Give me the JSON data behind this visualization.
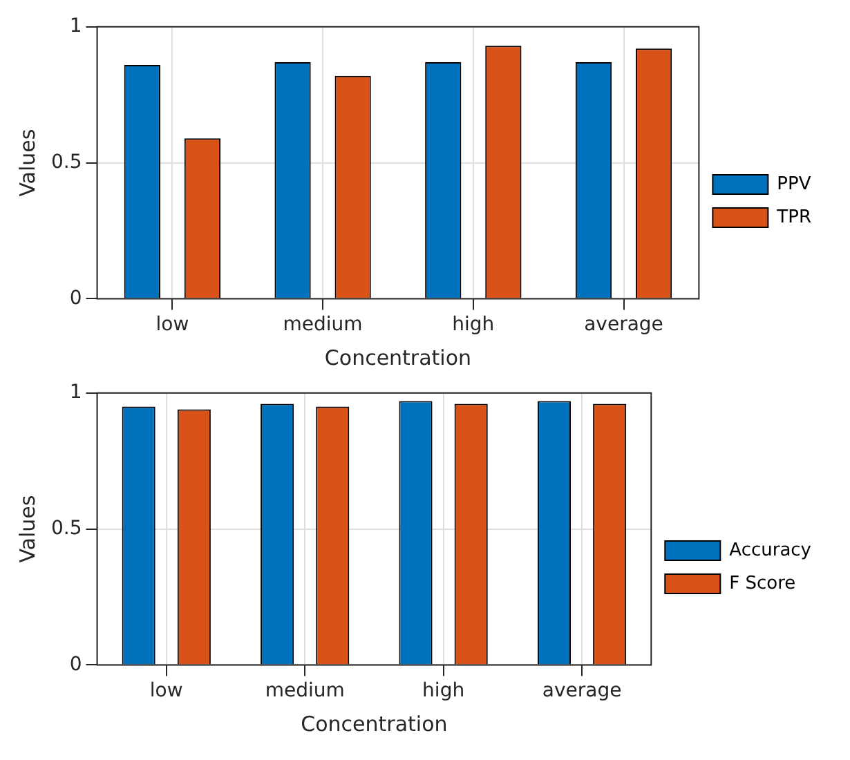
{
  "chart_data": [
    {
      "type": "bar",
      "categories": [
        "low",
        "medium",
        "high",
        "average"
      ],
      "xlabel": "Concentration",
      "ylabel": "Values",
      "ylim": [
        0,
        1
      ],
      "yticks": [
        0,
        0.5,
        1
      ],
      "grid": true,
      "legend": "right",
      "series": [
        {
          "name": "PPV",
          "color": "#0072bd",
          "values": [
            0.86,
            0.87,
            0.87,
            0.87
          ]
        },
        {
          "name": "TPR",
          "color": "#d95319",
          "values": [
            0.59,
            0.82,
            0.93,
            0.92
          ]
        }
      ]
    },
    {
      "type": "bar",
      "categories": [
        "low",
        "medium",
        "high",
        "average"
      ],
      "xlabel": "Concentration",
      "ylabel": "Values",
      "ylim": [
        0,
        1
      ],
      "yticks": [
        0,
        0.5,
        1
      ],
      "grid": true,
      "legend": "right",
      "series": [
        {
          "name": "Accuracy",
          "color": "#0072bd",
          "values": [
            0.95,
            0.96,
            0.97,
            0.97
          ]
        },
        {
          "name": "F Score",
          "color": "#d95319",
          "values": [
            0.94,
            0.95,
            0.96,
            0.96
          ]
        }
      ]
    }
  ]
}
